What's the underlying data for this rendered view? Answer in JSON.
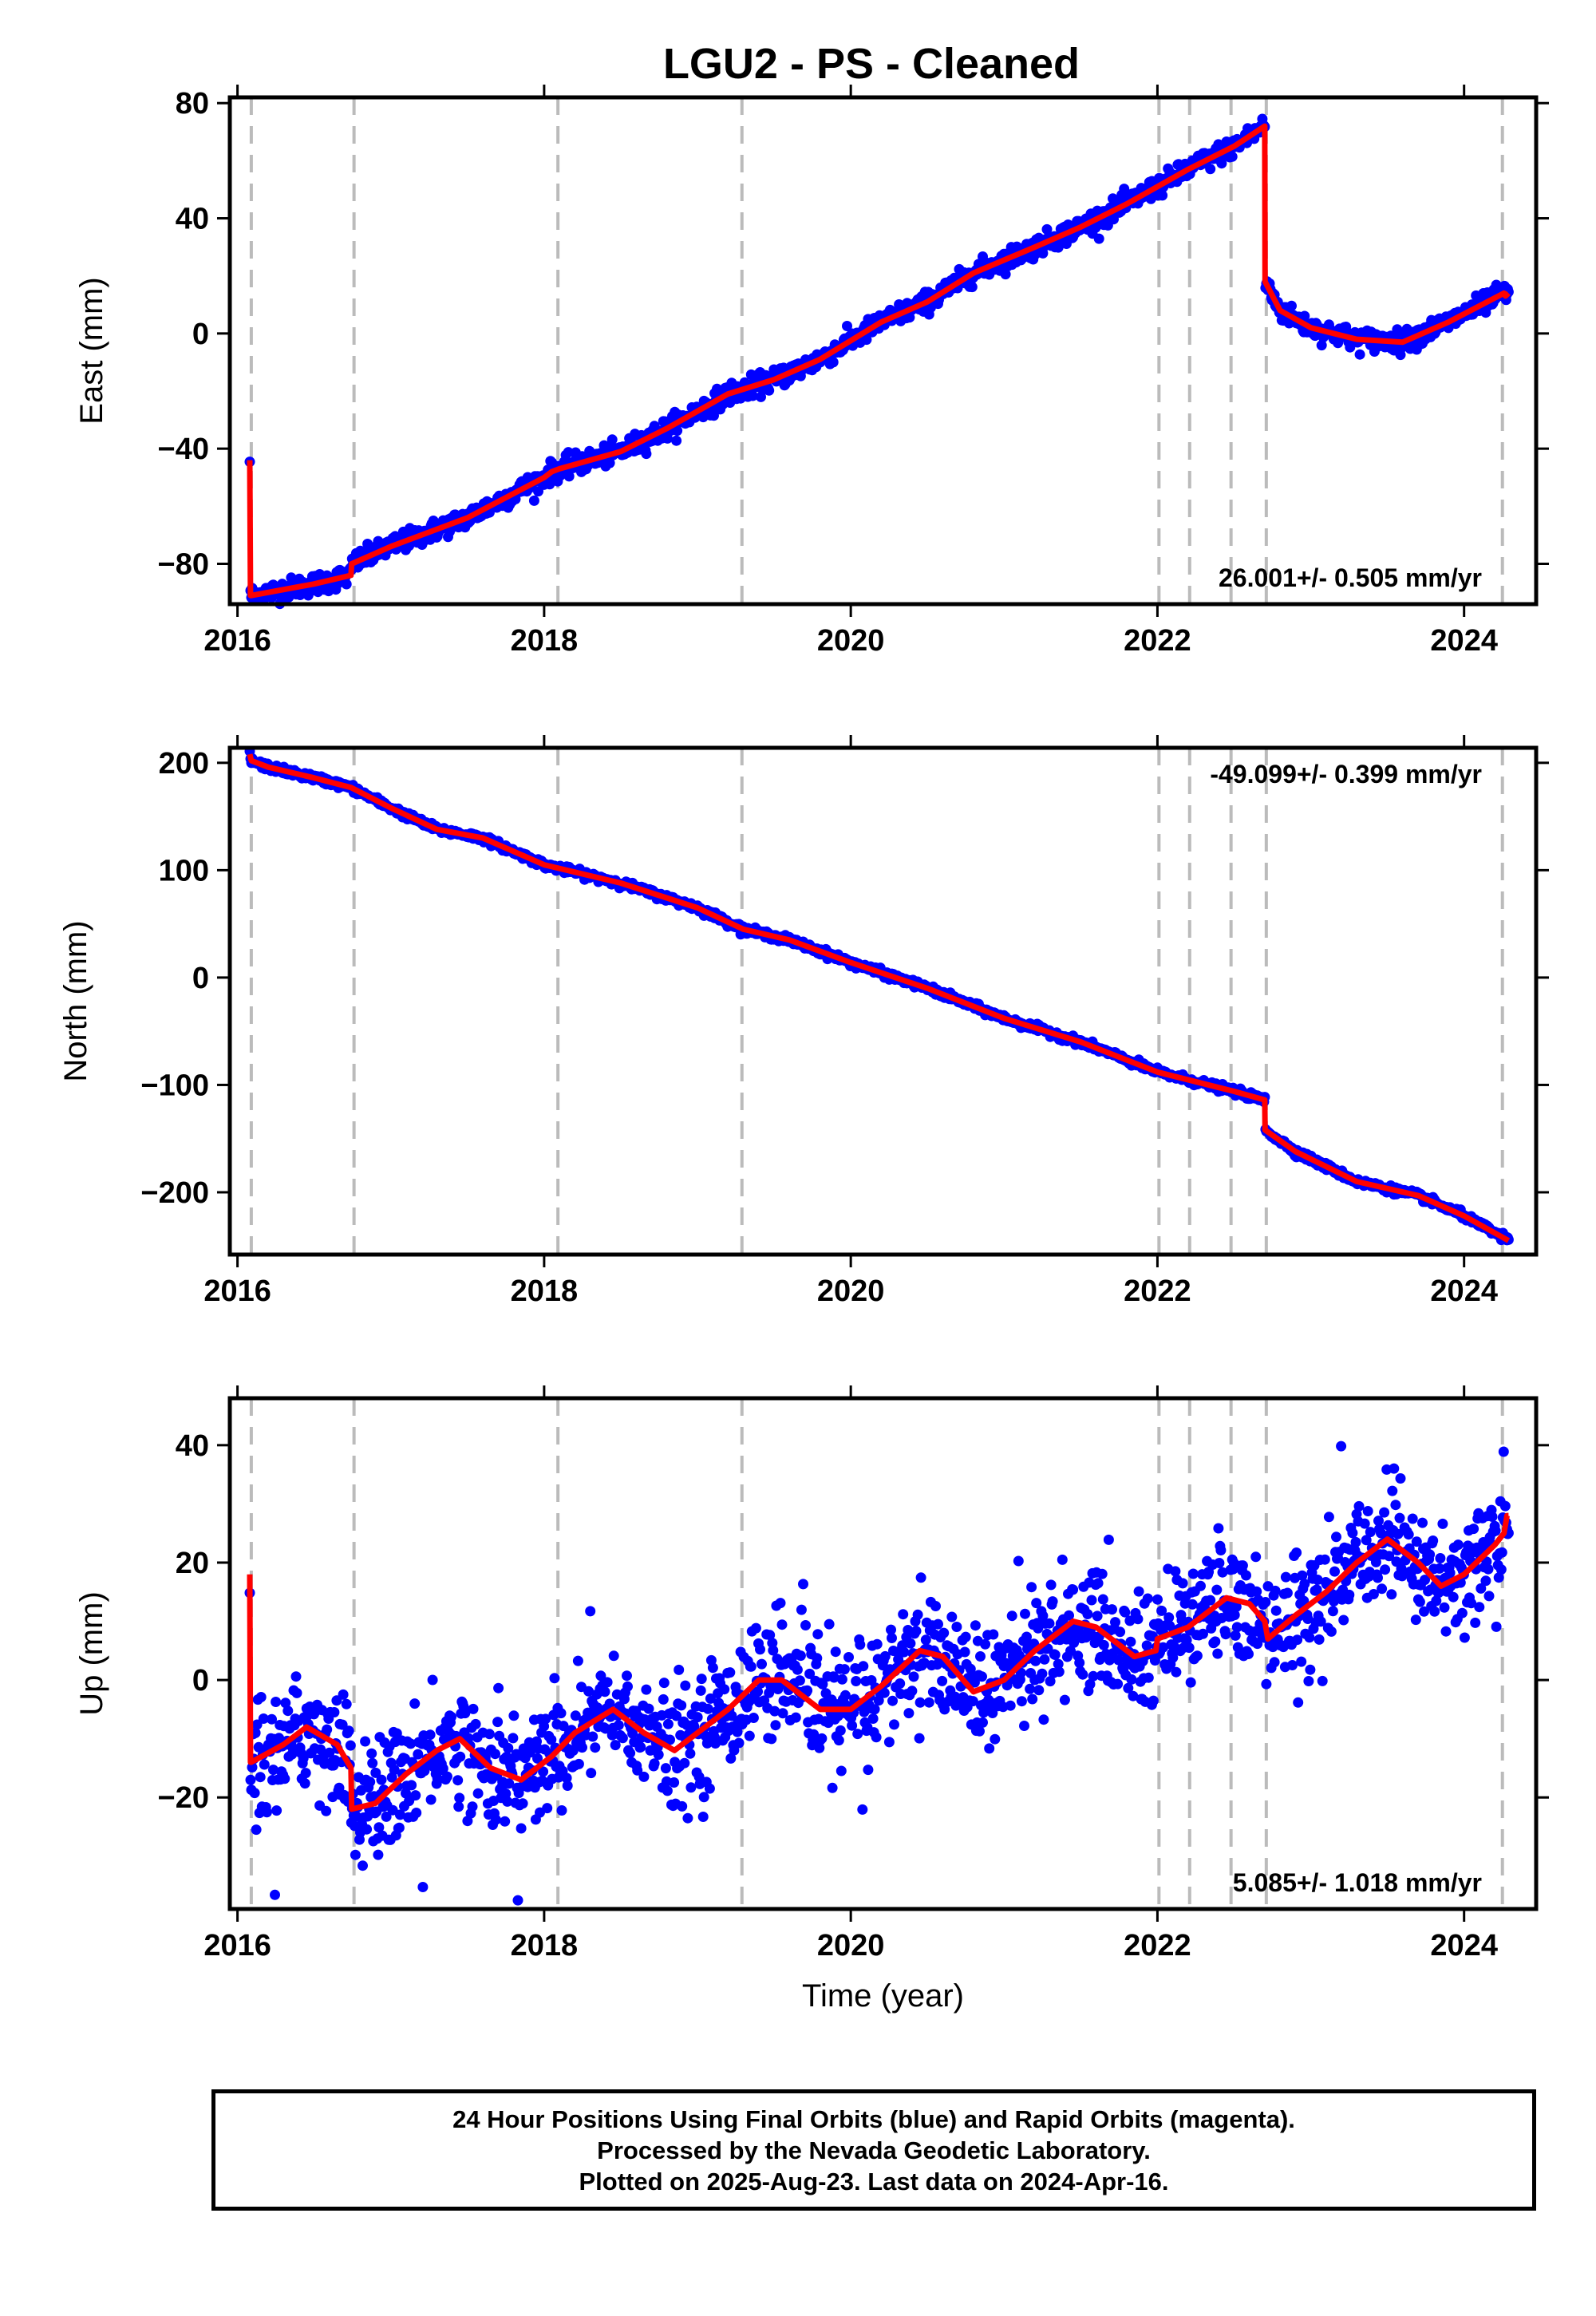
{
  "title": "LGU2  - PS - Cleaned",
  "colors": {
    "final_orbits": "#0000ff",
    "model": "#ff0000",
    "event_lines": "#bbbbbb"
  },
  "chart_data": [
    {
      "type": "scatter",
      "ylabel": "East (mm)",
      "xlabel": "",
      "xlim": [
        2015.95,
        2024.47
      ],
      "ylim": [
        -94,
        82
      ],
      "xticks": [
        2016,
        2018,
        2020,
        2022,
        2024
      ],
      "yticks": [
        -80,
        -40,
        0,
        40,
        80
      ],
      "tick_labels_x": [
        "2016",
        "2018",
        "2020",
        "2022",
        "2024"
      ],
      "tick_labels_y": [
        "−80",
        "−40",
        "0",
        "40",
        "80"
      ],
      "rate_label": "26.001+/- 0.505 mm/yr",
      "rate_position": "bottom-right",
      "noise_mm": 1.8,
      "model": {
        "x": [
          2016.08,
          2016.085,
          2016.09,
          2016.5,
          2016.74,
          2016.745,
          2017.0,
          2017.5,
          2018.0,
          2018.05,
          2018.1,
          2018.5,
          2018.8,
          2019.2,
          2019.5,
          2019.8,
          2020.2,
          2020.5,
          2020.8,
          2021.2,
          2021.5,
          2021.8,
          2022.2,
          2022.5,
          2022.7,
          2022.702,
          2022.8,
          2023.0,
          2023.3,
          2023.6,
          2023.9,
          2024.26,
          2024.27,
          2024.29
        ],
        "y": [
          -44,
          -91,
          -91,
          -87,
          -84,
          -80,
          -74,
          -64,
          -50,
          -48,
          -47,
          -41,
          -33,
          -21,
          -16,
          -9,
          4,
          11,
          21,
          30,
          37,
          45,
          57,
          65,
          72,
          18,
          8,
          2,
          -2,
          -3,
          4,
          14,
          13,
          14
        ]
      }
    },
    {
      "type": "scatter",
      "ylabel": "North (mm)",
      "xlabel": "",
      "xlim": [
        2015.95,
        2024.47
      ],
      "ylim": [
        -258,
        214
      ],
      "xticks": [
        2016,
        2018,
        2020,
        2022,
        2024
      ],
      "yticks": [
        -200,
        -100,
        0,
        100,
        200
      ],
      "tick_labels_x": [
        "2016",
        "2018",
        "2020",
        "2022",
        "2024"
      ],
      "tick_labels_y": [
        "−200",
        "−100",
        "0",
        "100",
        "200"
      ],
      "rate_label": "-49.099+/- 0.399 mm/yr",
      "rate_position": "top-right",
      "noise_mm": 1.6,
      "model": {
        "x": [
          2016.08,
          2016.09,
          2016.2,
          2016.5,
          2016.74,
          2017.0,
          2017.3,
          2017.6,
          2018.0,
          2018.5,
          2019.0,
          2019.3,
          2019.6,
          2020.0,
          2020.5,
          2021.0,
          2021.5,
          2022.0,
          2022.5,
          2022.7,
          2022.702,
          2022.9,
          2023.3,
          2023.7,
          2024.0,
          2024.29
        ],
        "y": [
          208,
          202,
          196,
          186,
          177,
          158,
          138,
          130,
          105,
          88,
          65,
          45,
          35,
          14,
          -10,
          -38,
          -60,
          -88,
          -106,
          -114,
          -142,
          -162,
          -190,
          -203,
          -222,
          -245
        ]
      }
    },
    {
      "type": "scatter",
      "ylabel": "Up (mm)",
      "xlabel": "Time (year)",
      "xlim": [
        2015.95,
        2024.47
      ],
      "ylim": [
        -39,
        48
      ],
      "xticks": [
        2016,
        2018,
        2020,
        2022,
        2024
      ],
      "yticks": [
        -20,
        0,
        20,
        40
      ],
      "tick_labels_x": [
        "2016",
        "2018",
        "2020",
        "2022",
        "2024"
      ],
      "tick_labels_y": [
        "−20",
        "0",
        "20",
        "40"
      ],
      "rate_label": "5.085+/- 1.018 mm/yr",
      "rate_position": "bottom-right",
      "noise_mm": 5.0,
      "model": {
        "x": [
          2016.08,
          2016.085,
          2016.09,
          2016.3,
          2016.45,
          2016.65,
          2016.74,
          2016.745,
          2016.9,
          2017.1,
          2017.3,
          2017.45,
          2017.65,
          2017.85,
          2018.05,
          2018.2,
          2018.45,
          2018.65,
          2018.85,
          2019.05,
          2019.2,
          2019.4,
          2019.55,
          2019.8,
          2020.0,
          2020.2,
          2020.45,
          2020.6,
          2020.8,
          2021.0,
          2021.2,
          2021.45,
          2021.6,
          2021.85,
          2021.99,
          2022.0,
          2022.2,
          2022.45,
          2022.6,
          2022.7,
          2022.72,
          2022.9,
          2023.1,
          2023.3,
          2023.5,
          2023.7,
          2023.85,
          2024.0,
          2024.2,
          2024.26,
          2024.28,
          2024.29
        ],
        "y": [
          18,
          -14,
          -14,
          -11,
          -8,
          -11,
          -15,
          -22,
          -21,
          -16,
          -12,
          -10,
          -15,
          -17,
          -13,
          -9,
          -5,
          -9,
          -12,
          -8,
          -5,
          0,
          0,
          -5,
          -5,
          -1,
          5,
          4,
          -2,
          0,
          5,
          10,
          9,
          4,
          5,
          7,
          9,
          14,
          13,
          10,
          7,
          11,
          15,
          20,
          24,
          20,
          16,
          18,
          23,
          25,
          28,
          28
        ]
      }
    }
  ],
  "event_lines_x": [
    2016.09,
    2016.76,
    2018.09,
    2019.29,
    2022.01,
    2022.21,
    2022.48,
    2022.71,
    2024.25
  ],
  "footer": {
    "line1": "24 Hour Positions Using Final Orbits (blue) and Rapid Orbits (magenta).",
    "line2": "Processed by the Nevada Geodetic Laboratory.",
    "line3": "Plotted on 2025-Aug-23. Last data on 2024-Apr-16."
  }
}
